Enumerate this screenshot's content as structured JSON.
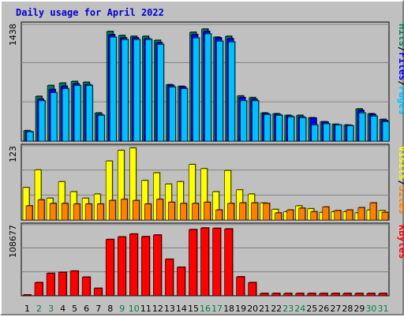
{
  "title": "Daily usage for April 2022",
  "colors": {
    "hits": "#00805c",
    "files": "#0000ff",
    "pages": "#00c0ff",
    "visits": "#ffff00",
    "sites": "#ff8000",
    "kbytes": "#ff0000",
    "title": "#0000cc",
    "weekend_label": "#008040",
    "weekday_label": "#000000",
    "panel_bg": "#c0c0c0",
    "plot_bg": "#c0c0c0"
  },
  "chart_data": [
    {
      "type": "bar",
      "panel": "hits-files-pages",
      "categories": [
        "1",
        "2",
        "3",
        "4",
        "5",
        "6",
        "7",
        "8",
        "9",
        "10",
        "11",
        "12",
        "13",
        "14",
        "15",
        "16",
        "17",
        "18",
        "19",
        "20",
        "21",
        "22",
        "23",
        "24",
        "25",
        "26",
        "27",
        "28",
        "29",
        "30",
        "31"
      ],
      "ymax_label": "1438",
      "ylim": [
        0,
        1438
      ],
      "legend": [
        "Pages",
        "Files",
        "Hits"
      ],
      "series": [
        {
          "name": "Hits",
          "values": [
            130,
            555,
            690,
            720,
            740,
            730,
            350,
            1360,
            1310,
            1300,
            1300,
            1250,
            700,
            680,
            1350,
            1390,
            1290,
            1300,
            560,
            540,
            350,
            340,
            320,
            320,
            290,
            240,
            210,
            200,
            400,
            340,
            270
          ]
        },
        {
          "name": "Files",
          "values": [
            120,
            520,
            640,
            680,
            710,
            700,
            330,
            1320,
            1280,
            1280,
            1270,
            1220,
            690,
            670,
            1320,
            1360,
            1280,
            1270,
            540,
            520,
            340,
            330,
            310,
            300,
            285,
            235,
            200,
            195,
            380,
            330,
            255
          ]
        },
        {
          "name": "Pages",
          "values": [
            115,
            500,
            600,
            650,
            690,
            690,
            320,
            1290,
            1260,
            1260,
            1260,
            1200,
            670,
            650,
            1280,
            1330,
            1240,
            1230,
            500,
            500,
            330,
            320,
            300,
            290,
            200,
            215,
            200,
            190,
            350,
            310,
            240
          ]
        }
      ]
    },
    {
      "type": "bar",
      "panel": "visits-sites",
      "categories": [
        "1",
        "2",
        "3",
        "4",
        "5",
        "6",
        "7",
        "8",
        "9",
        "10",
        "11",
        "12",
        "13",
        "14",
        "15",
        "16",
        "17",
        "18",
        "19",
        "20",
        "21",
        "22",
        "23",
        "24",
        "25",
        "26",
        "27",
        "28",
        "29",
        "30",
        "31"
      ],
      "ymax_label": "123",
      "ylim": [
        0,
        123
      ],
      "legend": [
        "Sites",
        "Visits"
      ],
      "series": [
        {
          "name": "Visits",
          "values": [
            55,
            85,
            37,
            65,
            48,
            37,
            44,
            100,
            118,
            122,
            67,
            80,
            61,
            65,
            94,
            87,
            48,
            84,
            51,
            44,
            29,
            18,
            14,
            24,
            19,
            13,
            14,
            14,
            12,
            17,
            16
          ]
        },
        {
          "name": "Sites",
          "values": [
            24,
            34,
            28,
            28,
            27,
            27,
            27,
            33,
            35,
            33,
            27,
            35,
            30,
            28,
            28,
            30,
            17,
            28,
            29,
            29,
            28,
            12,
            17,
            20,
            14,
            22,
            16,
            17,
            21,
            29,
            13
          ]
        }
      ]
    },
    {
      "type": "bar",
      "panel": "kbytes",
      "categories": [
        "1",
        "2",
        "3",
        "4",
        "5",
        "6",
        "7",
        "8",
        "9",
        "10",
        "11",
        "12",
        "13",
        "14",
        "15",
        "16",
        "17",
        "18",
        "19",
        "20",
        "21",
        "22",
        "23",
        "24",
        "25",
        "26",
        "27",
        "28",
        "29",
        "30",
        "31"
      ],
      "ymax_label": "108677",
      "ylim": [
        0,
        108677
      ],
      "legend": [
        "KBytes"
      ],
      "series": [
        {
          "name": "KBytes",
          "values": [
            1200,
            20500,
            35000,
            36500,
            38500,
            29000,
            11500,
            88000,
            92000,
            96500,
            92500,
            95000,
            57000,
            44500,
            103500,
            106000,
            105500,
            104500,
            29500,
            20500,
            3500,
            3500,
            3500,
            3500,
            3500,
            3500,
            3500,
            3500,
            3500,
            3500,
            3500
          ]
        }
      ]
    }
  ],
  "x_weekend_days": [
    "2",
    "3",
    "9",
    "10",
    "16",
    "17",
    "23",
    "24",
    "30",
    "31"
  ]
}
